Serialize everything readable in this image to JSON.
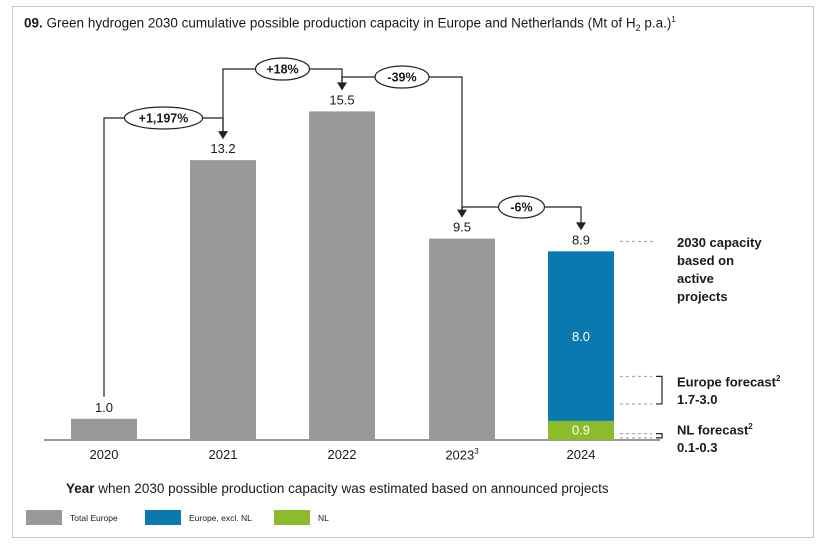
{
  "title": {
    "number": "09.",
    "text_before_sub": "Green hydrogen 2030 cumulative possible production capacity in Europe and Netherlands (Mt of H",
    "sub": "2",
    "text_after_sub": " p.a.)",
    "footnote": "1"
  },
  "chart_data": {
    "type": "bar",
    "title": "Green hydrogen 2030 cumulative possible production capacity in Europe and Netherlands (Mt of H2 p.a.)",
    "xlabel": "Year when 2030 possible production capacity was estimated based on announced projects",
    "ylabel": "",
    "ylim": [
      0,
      16
    ],
    "categories": [
      "2020",
      "2021",
      "2022",
      "2023",
      "2024"
    ],
    "category_footnotes": [
      "",
      "",
      "",
      "3",
      ""
    ],
    "series": [
      {
        "name": "Total Europe",
        "color": "#999999",
        "values": [
          1.0,
          13.2,
          15.5,
          9.5,
          null
        ]
      },
      {
        "name": "Europe, excl. NL",
        "color": "#0a79b0",
        "values": [
          null,
          null,
          null,
          null,
          8.0
        ]
      },
      {
        "name": "NL",
        "color": "#8cbb2b",
        "values": [
          null,
          null,
          null,
          null,
          0.9
        ]
      }
    ],
    "total_labels": [
      "1.0",
      "13.2",
      "15.5",
      "9.5",
      "8.9"
    ],
    "segment_labels": {
      "europe_excl_nl": "8.0",
      "nl": "0.9"
    },
    "changes": [
      {
        "from": "2020",
        "to": "2021",
        "label": "+1,197%"
      },
      {
        "from": "2021",
        "to": "2022",
        "label": "+18%"
      },
      {
        "from": "2022",
        "to": "2023",
        "label": "-39%"
      },
      {
        "from": "2023",
        "to": "2024",
        "label": "-6%"
      }
    ],
    "europe_forecast_range": [
      1.7,
      3.0
    ],
    "nl_forecast_range": [
      0.1,
      0.3
    ]
  },
  "annotations": {
    "capacity_note": [
      "2030 capacity",
      "based on",
      "active",
      "projects"
    ],
    "europe_forecast_label": "Europe forecast",
    "europe_forecast_footnote": "2",
    "europe_forecast_range": "1.7-3.0",
    "nl_forecast_label": "NL forecast",
    "nl_forecast_footnote": "2",
    "nl_forecast_range": "0.1-0.3"
  },
  "caption": {
    "bold": "Year",
    "rest": " when 2030 possible production capacity was estimated based on announced projects"
  },
  "legend": [
    {
      "label": "Total Europe",
      "color": "#999999"
    },
    {
      "label": "Europe, excl. NL",
      "color": "#0a79b0"
    },
    {
      "label": "NL",
      "color": "#8cbb2b"
    }
  ]
}
